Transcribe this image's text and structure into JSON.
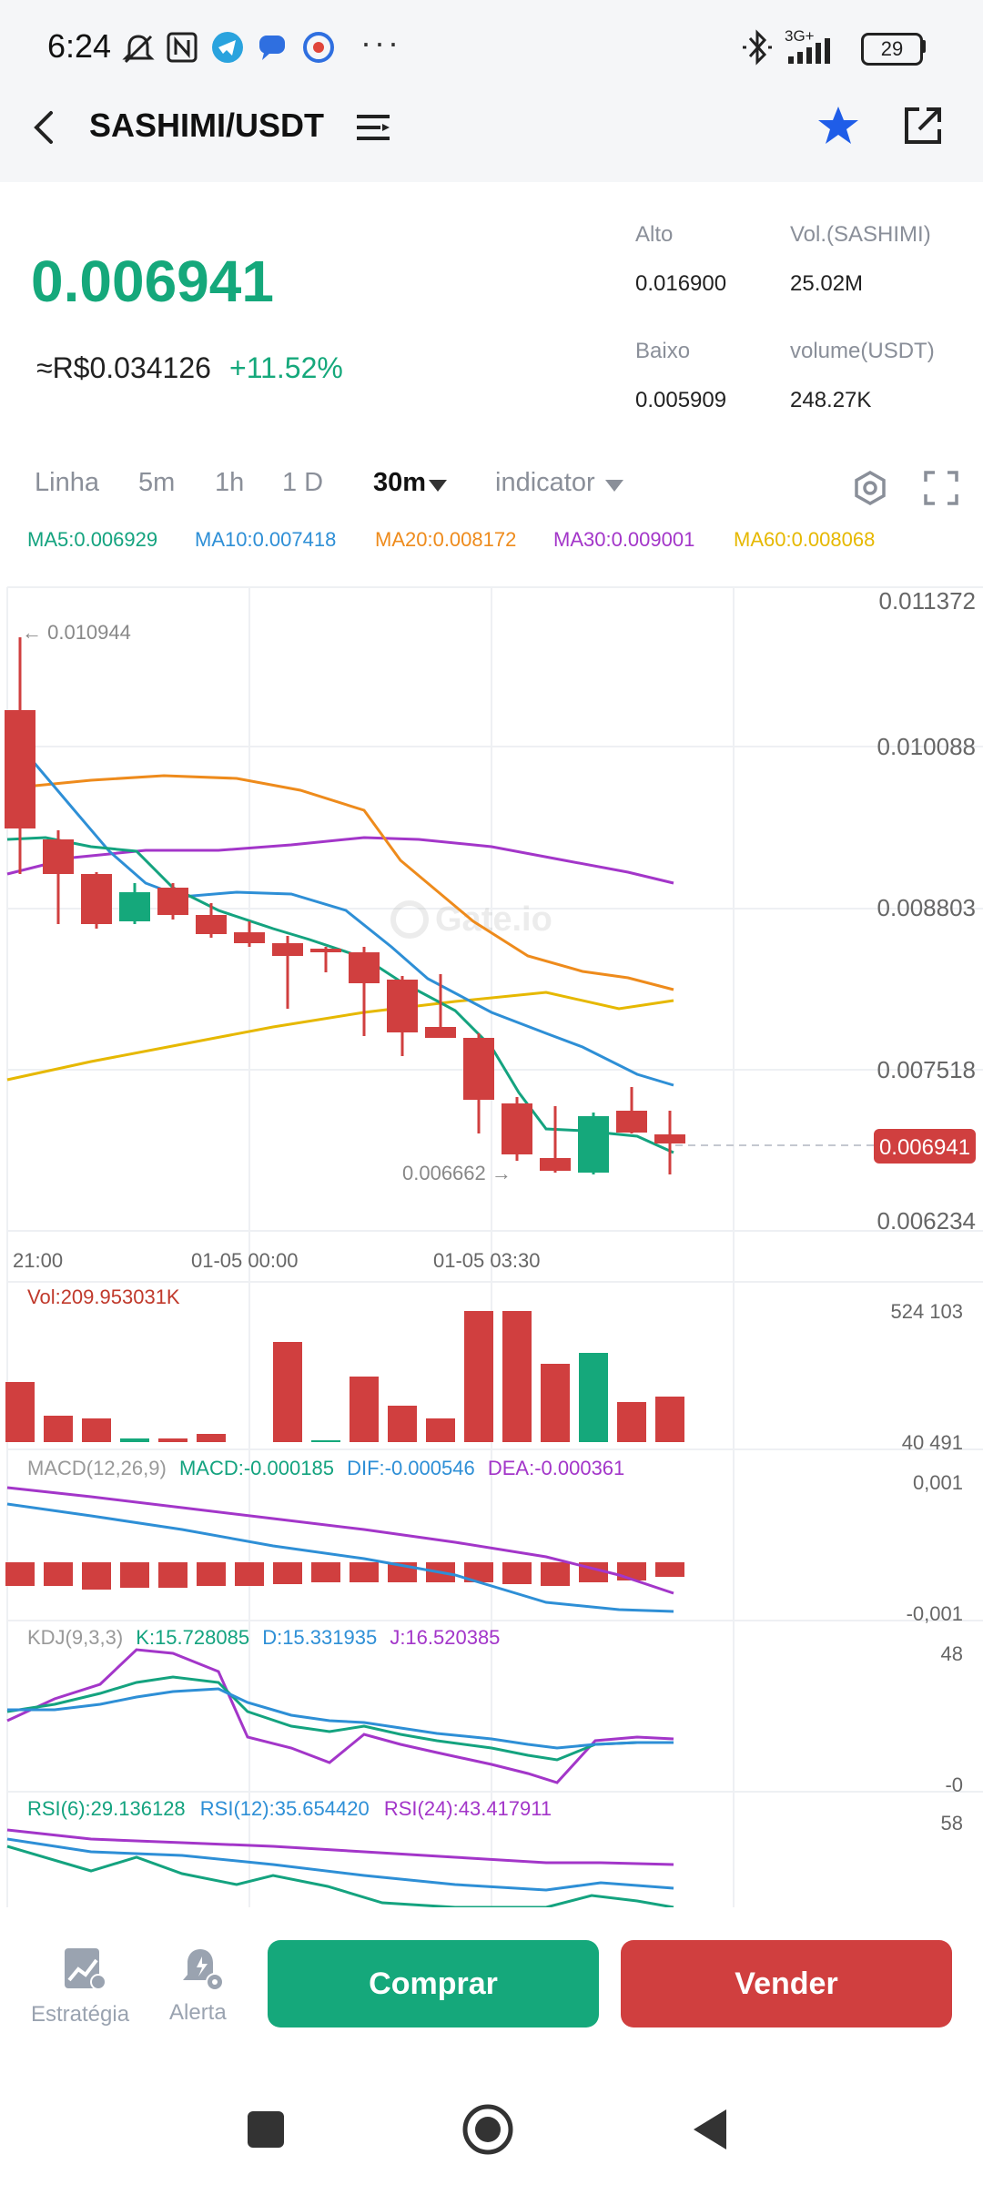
{
  "status": {
    "time": "6:24",
    "network": "3G+",
    "battery": "29",
    "more": "···"
  },
  "header": {
    "title": "SASHIMI/USDT"
  },
  "price": {
    "last": "0.006941",
    "fiat": "≈R$0.034126",
    "change": "+11.52%",
    "high_label": "Alto",
    "high_value": "0.016900",
    "low_label": "Baixo",
    "low_value": "0.005909",
    "vol_base_label": "Vol.(SASHIMI)",
    "vol_base_value": "25.02M",
    "vol_quote_label": "volume(USDT)",
    "vol_quote_value": "248.27K"
  },
  "tabs": {
    "line": "Linha",
    "m5": "5m",
    "h1": "1h",
    "d1": "1 D",
    "m30": "30m",
    "indicator": "indicator"
  },
  "ma": {
    "ma5": "MA5:0.006929",
    "ma10": "MA10:0.007418",
    "ma20": "MA20:0.008172",
    "ma30": "MA30:0.009001",
    "ma60": "MA60:0.008068"
  },
  "main_chart": {
    "y_ticks": [
      "0.011372",
      "0.010088",
      "0.008803",
      "0.007518",
      "0.006234"
    ],
    "x_ticks": [
      "21:00",
      "01-05 00:00",
      "01-05 03:30"
    ],
    "max_marker": "← 0.010944",
    "min_marker": "0.006662 →",
    "current_price_tag": "0.006941",
    "watermark": "Gate.io"
  },
  "volume_chart": {
    "label": "Vol:209.953031K",
    "max": "524 103",
    "min": "40 491"
  },
  "macd_chart": {
    "title": "MACD(12,26,9)",
    "macd": "MACD:-0.000185",
    "dif": "DIF:-0.000546",
    "dea": "DEA:-0.000361",
    "max": "0,001",
    "min": "-0,001"
  },
  "kdj_chart": {
    "title": "KDJ(9,3,3)",
    "k": "K:15.728085",
    "d": "D:15.331935",
    "j": "J:16.520385",
    "max": "48",
    "min": "-0"
  },
  "rsi_chart": {
    "rsi6": "RSI(6):29.136128",
    "rsi12": "RSI(12):35.654420",
    "rsi24": "RSI(24):43.417911",
    "max": "58"
  },
  "bottom": {
    "strategy": "Estratégia",
    "alert": "Alerta",
    "buy": "Comprar",
    "sell": "Vender"
  },
  "colors": {
    "green": "#15a87b",
    "red": "#d03f3f",
    "ma5": "#14a37f",
    "ma10": "#2e8fd6",
    "ma20": "#ee8b1c",
    "ma30": "#a336c9",
    "ma60": "#e6b800"
  }
}
